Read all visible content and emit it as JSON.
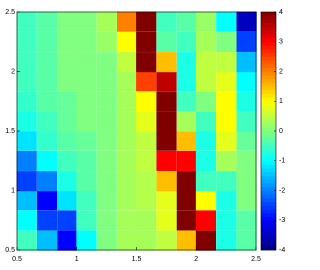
{
  "chart_data": {
    "type": "heatmap",
    "x": [
      0.58,
      0.75,
      0.92,
      1.08,
      1.25,
      1.42,
      1.58,
      1.75,
      1.92,
      2.08,
      2.25,
      2.42
    ],
    "y": [
      0.58,
      0.75,
      0.92,
      1.08,
      1.25,
      1.42,
      1.58,
      1.75,
      1.92,
      2.08,
      2.25,
      2.42
    ],
    "z": [
      [
        -0.5,
        -1.5,
        -3,
        -1,
        0,
        0.3,
        0.3,
        0.5,
        1.5,
        4,
        -0.8,
        -0.3
      ],
      [
        -1,
        -2.5,
        -2.5,
        -0.5,
        0,
        0.3,
        0.3,
        0.8,
        4,
        3,
        -0.8,
        -0.3
      ],
      [
        -1.5,
        -3,
        -1.2,
        -0.5,
        0,
        0.3,
        0.4,
        0.8,
        4,
        1,
        -0.8,
        0
      ],
      [
        -2.5,
        -2,
        -0.8,
        -0.3,
        0,
        0.3,
        0.4,
        1.5,
        4,
        -0.5,
        -0.5,
        0
      ],
      [
        -2,
        -1,
        -0.5,
        -0.3,
        0,
        0.3,
        0.5,
        3,
        3,
        -0.8,
        0.3,
        0
      ],
      [
        -1.2,
        -0.6,
        -0.3,
        -0.2,
        0,
        0.3,
        0.5,
        4,
        1.5,
        -0.8,
        0.8,
        -0.2
      ],
      [
        -0.8,
        -0.5,
        -0.2,
        0,
        0,
        0.3,
        0.8,
        4,
        0.3,
        -0.5,
        1,
        -0.5
      ],
      [
        -0.6,
        -0.3,
        -0.2,
        0,
        0,
        0.3,
        1,
        4,
        -0.5,
        0,
        1,
        -0.8
      ],
      [
        -0.5,
        -0.3,
        0,
        0,
        0,
        0.3,
        2.5,
        3.5,
        -0.8,
        0.5,
        0.8,
        -1
      ],
      [
        -0.5,
        -0.3,
        0,
        0,
        0,
        0.5,
        4,
        1.5,
        -0.8,
        0.5,
        0.5,
        -1.5
      ],
      [
        -0.5,
        -0.3,
        0,
        0,
        0.2,
        1,
        4,
        -0.3,
        -0.5,
        0.3,
        0,
        -2.5
      ],
      [
        -0.5,
        -0.3,
        0,
        0,
        0.3,
        2,
        4,
        -0.5,
        -0.3,
        0.2,
        -1,
        -3.5
      ]
    ],
    "xlim": [
      0.5,
      2.5
    ],
    "ylim": [
      0.5,
      2.5
    ],
    "xticks": [
      0.5,
      1,
      1.5,
      2,
      2.5
    ],
    "yticks": [
      0.5,
      1,
      1.5,
      2,
      2.5
    ],
    "colormap": "jet",
    "clim": [
      -4,
      4
    ],
    "colorbar_ticks": [
      -4,
      -3,
      -2,
      -1,
      0,
      1,
      2,
      3,
      4
    ]
  }
}
